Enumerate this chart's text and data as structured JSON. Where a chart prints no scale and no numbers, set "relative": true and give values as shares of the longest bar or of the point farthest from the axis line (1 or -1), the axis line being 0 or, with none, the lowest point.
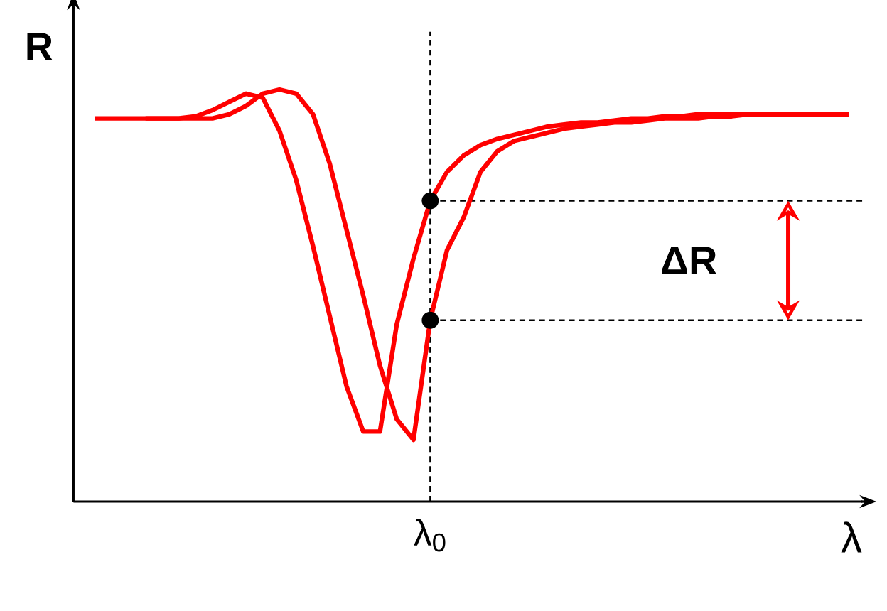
{
  "chart_data": {
    "type": "line",
    "relative": true,
    "ylabel": "R",
    "xlabel": "λ",
    "annotations": [
      "ΔR",
      "λ$_{0}$"
    ],
    "categories": [
      null,
      null,
      null,
      null,
      null,
      null,
      null,
      null,
      null,
      null,
      null,
      null,
      null,
      null,
      null,
      null,
      null,
      null,
      null,
      null,
      null,
      null,
      null,
      null,
      null,
      null,
      null,
      null,
      null,
      null,
      null,
      null,
      null,
      null,
      null,
      null,
      null,
      null,
      null,
      null,
      null,
      null,
      null,
      null,
      null,
      null
    ],
    "ref_lines": [
      {
        "axis": "y",
        "value": 0.73,
        "line_style": "dashed",
        "color": "#000000"
      },
      {
        "axis": "y",
        "value": 0.44,
        "line_style": "dashed",
        "color": "#000000"
      }
    ],
    "series": [
      {
        "color": "#ff0000",
        "values": [
          0.93,
          0.93,
          0.93,
          0.93,
          0.93,
          0.93,
          0.935,
          0.95,
          0.97,
          0.99,
          0.98,
          0.9,
          0.78,
          0.62,
          0.45,
          0.28,
          0.17,
          0.17,
          0.43,
          0.59,
          0.73,
          0.8,
          0.84,
          0.865,
          0.88,
          0.89,
          0.9,
          0.91,
          0.915,
          0.92,
          0.92,
          0.925,
          0.93,
          0.93,
          0.935,
          0.935,
          0.94,
          0.94,
          0.94,
          0.94,
          0.94,
          0.94,
          0.94,
          0.94,
          null,
          null
        ]
      },
      {
        "color": "#ff0000",
        "values": [
          null,
          null,
          null,
          0.93,
          0.93,
          0.93,
          0.93,
          0.93,
          0.94,
          0.96,
          0.99,
          1.0,
          0.99,
          0.94,
          0.82,
          0.66,
          0.5,
          0.33,
          0.2,
          0.15,
          0.44,
          0.61,
          0.69,
          0.8,
          0.85,
          0.875,
          0.885,
          0.895,
          0.905,
          0.91,
          0.915,
          0.92,
          0.92,
          0.925,
          0.93,
          0.93,
          0.93,
          0.935,
          0.935,
          0.94,
          0.94,
          0.94,
          0.94,
          0.94,
          0.94,
          0.94
        ]
      }
    ]
  }
}
